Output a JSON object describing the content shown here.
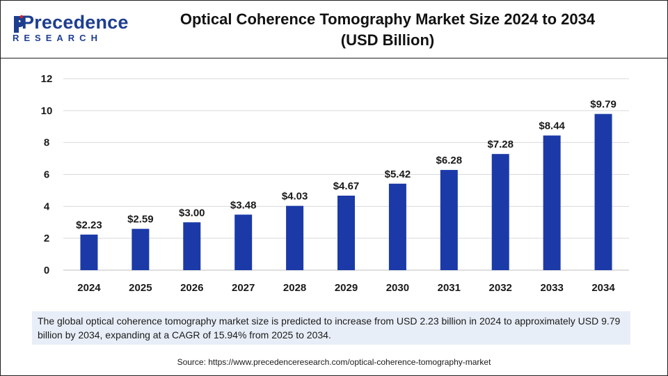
{
  "header": {
    "logo_brand": "Precedence",
    "logo_sub": "RESEARCH",
    "title_line1": "Optical Coherence Tomography Market Size 2024 to 2034",
    "title_line2": "(USD Billion)"
  },
  "note": "The global optical coherence tomography market size is predicted to increase from USD 2.23 billion in 2024 to approximately USD 9.79 billion by 2034, expanding at a CAGR of 15.94% from 2025 to 2034.",
  "source": "Source: https://www.precedenceresearch.com/optical-coherence-tomography-market",
  "colors": {
    "bar": "#1b3aa8",
    "brand": "#1d3e8f",
    "logo_accent": "#e01b24"
  },
  "chart_data": {
    "type": "bar",
    "categories": [
      "2024",
      "2025",
      "2026",
      "2027",
      "2028",
      "2029",
      "2030",
      "2031",
      "2032",
      "2033",
      "2034"
    ],
    "values": [
      2.23,
      2.59,
      3.0,
      3.48,
      4.03,
      4.67,
      5.42,
      6.28,
      7.28,
      8.44,
      9.79
    ],
    "data_labels": [
      "$2.23",
      "$2.59",
      "$3.00",
      "$3.48",
      "$4.03",
      "$4.67",
      "$5.42",
      "$6.28",
      "$7.28",
      "$8.44",
      "$9.79"
    ],
    "yticks": [
      "0",
      "2",
      "4",
      "6",
      "8",
      "10",
      "12"
    ],
    "ylim": [
      0,
      12
    ],
    "grid": true,
    "legend": "none"
  }
}
